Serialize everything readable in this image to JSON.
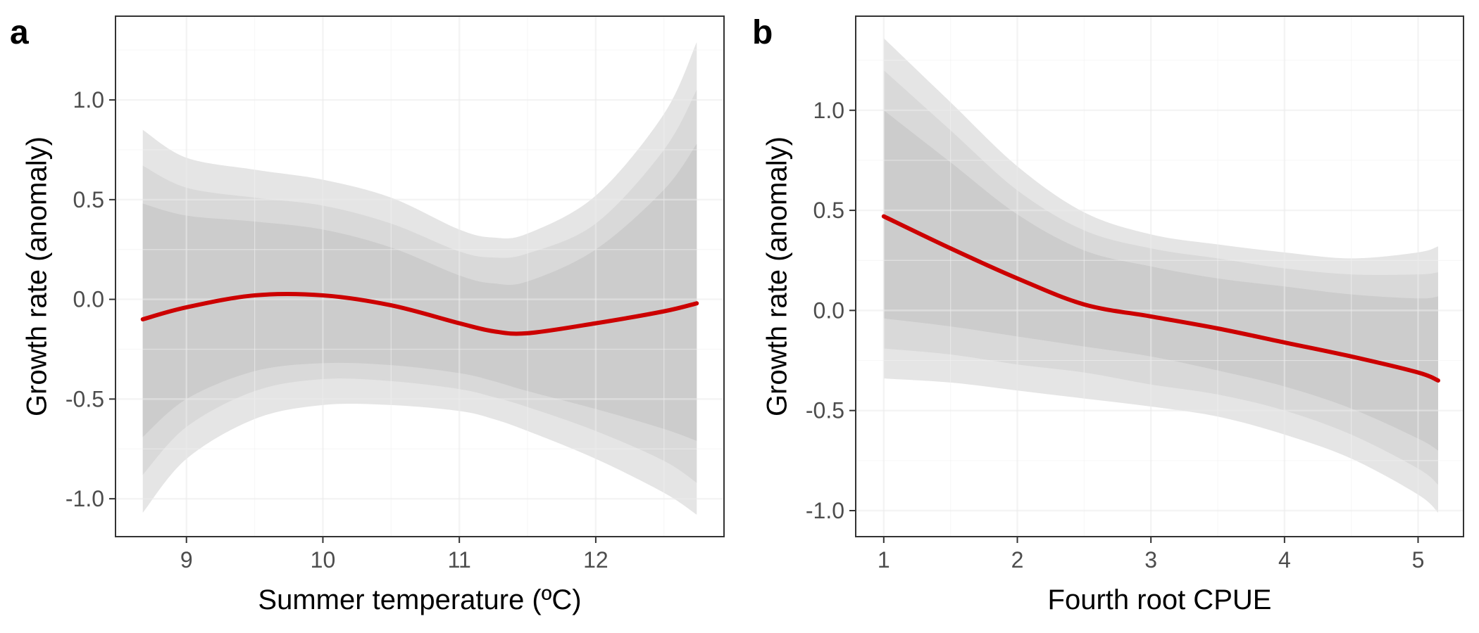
{
  "figure": {
    "background": "#ffffff",
    "band_colors": [
      "#e5e5e5",
      "#d9d9d9",
      "#cccccc"
    ],
    "line_color": "#cc0000"
  },
  "chart_data": [
    {
      "type": "line",
      "panel_label": "a",
      "title": "",
      "xlabel": "Summer temperature (ºC)",
      "ylabel": "Growth rate (anomaly)",
      "xlim": [
        8.48,
        12.94
      ],
      "ylim": [
        -1.19,
        1.42
      ],
      "x_ticks": [
        9,
        10,
        11,
        12
      ],
      "x_tick_labels": [
        "9",
        "10",
        "11",
        "12"
      ],
      "y_ticks": [
        -1.0,
        -0.5,
        0.0,
        0.5,
        1.0
      ],
      "y_tick_labels": [
        "-1.0",
        "-0.5",
        "0.0",
        "0.5",
        "1.0"
      ],
      "grid": true,
      "legend": "none",
      "series": [
        {
          "x": [
            8.68,
            9.0,
            9.5,
            10.0,
            10.5,
            11.0,
            11.25,
            11.5,
            12.0,
            12.5,
            12.74
          ],
          "y": [
            -0.1,
            -0.04,
            0.02,
            0.02,
            -0.03,
            -0.12,
            -0.16,
            -0.17,
            -0.12,
            -0.06,
            -0.02
          ],
          "lower_outer": [
            -1.07,
            -0.8,
            -0.6,
            -0.53,
            -0.53,
            -0.56,
            -0.6,
            -0.66,
            -0.8,
            -0.97,
            -1.08
          ],
          "lower_mid": [
            -0.88,
            -0.64,
            -0.46,
            -0.4,
            -0.41,
            -0.45,
            -0.49,
            -0.54,
            -0.66,
            -0.81,
            -0.92
          ],
          "lower_inner": [
            -0.69,
            -0.5,
            -0.36,
            -0.32,
            -0.33,
            -0.37,
            -0.41,
            -0.46,
            -0.55,
            -0.65,
            -0.71
          ],
          "upper_inner": [
            0.48,
            0.42,
            0.39,
            0.35,
            0.26,
            0.12,
            0.08,
            0.09,
            0.25,
            0.55,
            0.78
          ],
          "upper_mid": [
            0.67,
            0.56,
            0.51,
            0.47,
            0.38,
            0.24,
            0.21,
            0.23,
            0.38,
            0.75,
            1.05
          ],
          "upper_outer": [
            0.85,
            0.71,
            0.65,
            0.6,
            0.51,
            0.35,
            0.31,
            0.33,
            0.52,
            0.93,
            1.29
          ]
        }
      ]
    },
    {
      "type": "line",
      "panel_label": "b",
      "title": "",
      "xlabel": "Fourth root CPUE",
      "ylabel": "Growth rate (anomaly)",
      "xlim": [
        0.79,
        5.34
      ],
      "ylim": [
        -1.13,
        1.47
      ],
      "x_ticks": [
        1,
        2,
        3,
        4,
        5
      ],
      "x_tick_labels": [
        "1",
        "2",
        "3",
        "4",
        "5"
      ],
      "y_ticks": [
        -1.0,
        -0.5,
        0.0,
        0.5,
        1.0
      ],
      "y_tick_labels": [
        "-1.0",
        "-0.5",
        "0.0",
        "0.5",
        "1.0"
      ],
      "grid": true,
      "legend": "none",
      "series": [
        {
          "x": [
            1.0,
            1.5,
            2.0,
            2.5,
            3.0,
            3.5,
            4.0,
            4.5,
            5.0,
            5.15
          ],
          "y": [
            0.47,
            0.31,
            0.16,
            0.03,
            -0.03,
            -0.09,
            -0.16,
            -0.23,
            -0.31,
            -0.35
          ],
          "lower_outer": [
            -0.34,
            -0.36,
            -0.4,
            -0.44,
            -0.48,
            -0.53,
            -0.62,
            -0.74,
            -0.92,
            -1.01
          ],
          "lower_mid": [
            -0.19,
            -0.22,
            -0.27,
            -0.31,
            -0.37,
            -0.42,
            -0.5,
            -0.62,
            -0.79,
            -0.87
          ],
          "lower_inner": [
            -0.04,
            -0.08,
            -0.13,
            -0.18,
            -0.23,
            -0.3,
            -0.38,
            -0.49,
            -0.64,
            -0.7
          ],
          "upper_inner": [
            1.0,
            0.74,
            0.48,
            0.3,
            0.22,
            0.16,
            0.12,
            0.08,
            0.06,
            0.07
          ],
          "upper_mid": [
            1.2,
            0.9,
            0.6,
            0.4,
            0.31,
            0.26,
            0.21,
            0.18,
            0.18,
            0.19
          ],
          "upper_outer": [
            1.36,
            1.04,
            0.72,
            0.49,
            0.38,
            0.33,
            0.29,
            0.26,
            0.29,
            0.32
          ]
        }
      ]
    }
  ]
}
